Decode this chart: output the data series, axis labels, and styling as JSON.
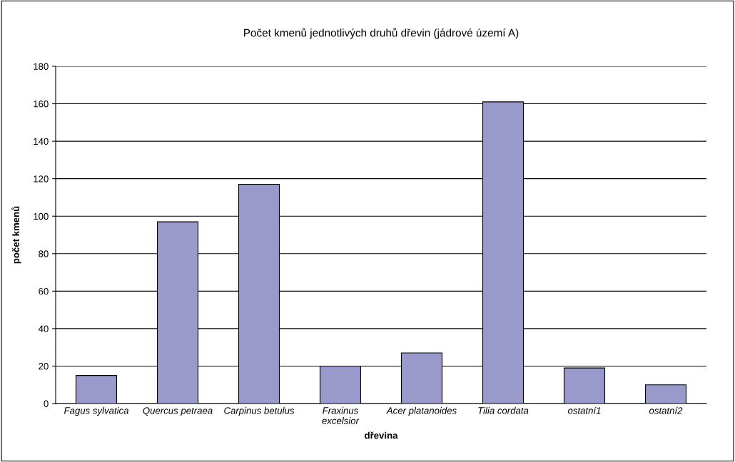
{
  "chart_data": {
    "type": "bar",
    "title": "Počet kmenů jednotlivých druhů dřevin (jádrové území A)",
    "xlabel": "dřevina",
    "ylabel": "počet kmenů",
    "categories": [
      "Fagus sylvatica",
      "Quercus petraea",
      "Carpinus betulus",
      "Fraxinus excelsior",
      "Acer platanoides",
      "Tilia cordata",
      "ostatní1",
      "ostatní2"
    ],
    "values": [
      15,
      97,
      117,
      20,
      27,
      161,
      19,
      10
    ],
    "color": "#9999cc",
    "ylim": [
      0,
      180
    ],
    "yticks": [
      0,
      20,
      40,
      60,
      80,
      100,
      120,
      140,
      160,
      180
    ],
    "grid": "y"
  }
}
